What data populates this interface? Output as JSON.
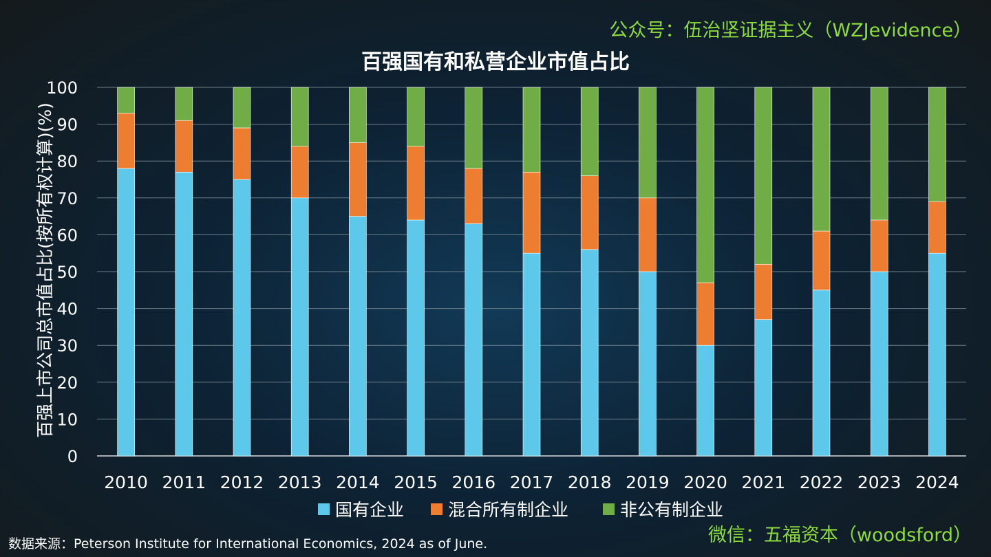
{
  "watermark_top": "公众号：伍治坚证据主义（WZJevidence）",
  "watermark_bottom": "微信：五福资本（woodsford）",
  "source_text": "数据来源：Peterson Institute for International Economics, 2024 as of June.",
  "chart_data": {
    "type": "bar",
    "stacked": true,
    "title": "百强国有和私营企业市值占比",
    "xlabel": "",
    "ylabel": "百强上市公司总市值占比(按所有权计算)(%)",
    "ylim": [
      0,
      100
    ],
    "yticks": [
      0,
      10,
      20,
      30,
      40,
      50,
      60,
      70,
      80,
      90,
      100
    ],
    "grid": true,
    "legend_position": "bottom",
    "categories": [
      "2010",
      "2011",
      "2012",
      "2013",
      "2014",
      "2015",
      "2016",
      "2017",
      "2018",
      "2019",
      "2020",
      "2021",
      "2022",
      "2023",
      "2024"
    ],
    "series": [
      {
        "name": "国有企业",
        "color": "#5ec8ea",
        "values": [
          78,
          77,
          75,
          70,
          65,
          64,
          63,
          55,
          56,
          50,
          30,
          37,
          45,
          50,
          55
        ]
      },
      {
        "name": "混合所有制企业",
        "color": "#ed7d31",
        "values": [
          15,
          14,
          14,
          14,
          20,
          20,
          15,
          22,
          20,
          20,
          17,
          15,
          16,
          14,
          14
        ]
      },
      {
        "name": "非公有制企业",
        "color": "#70ad47",
        "values": [
          7,
          9,
          11,
          16,
          15,
          16,
          22,
          23,
          24,
          30,
          53,
          48,
          39,
          36,
          31
        ]
      }
    ]
  }
}
